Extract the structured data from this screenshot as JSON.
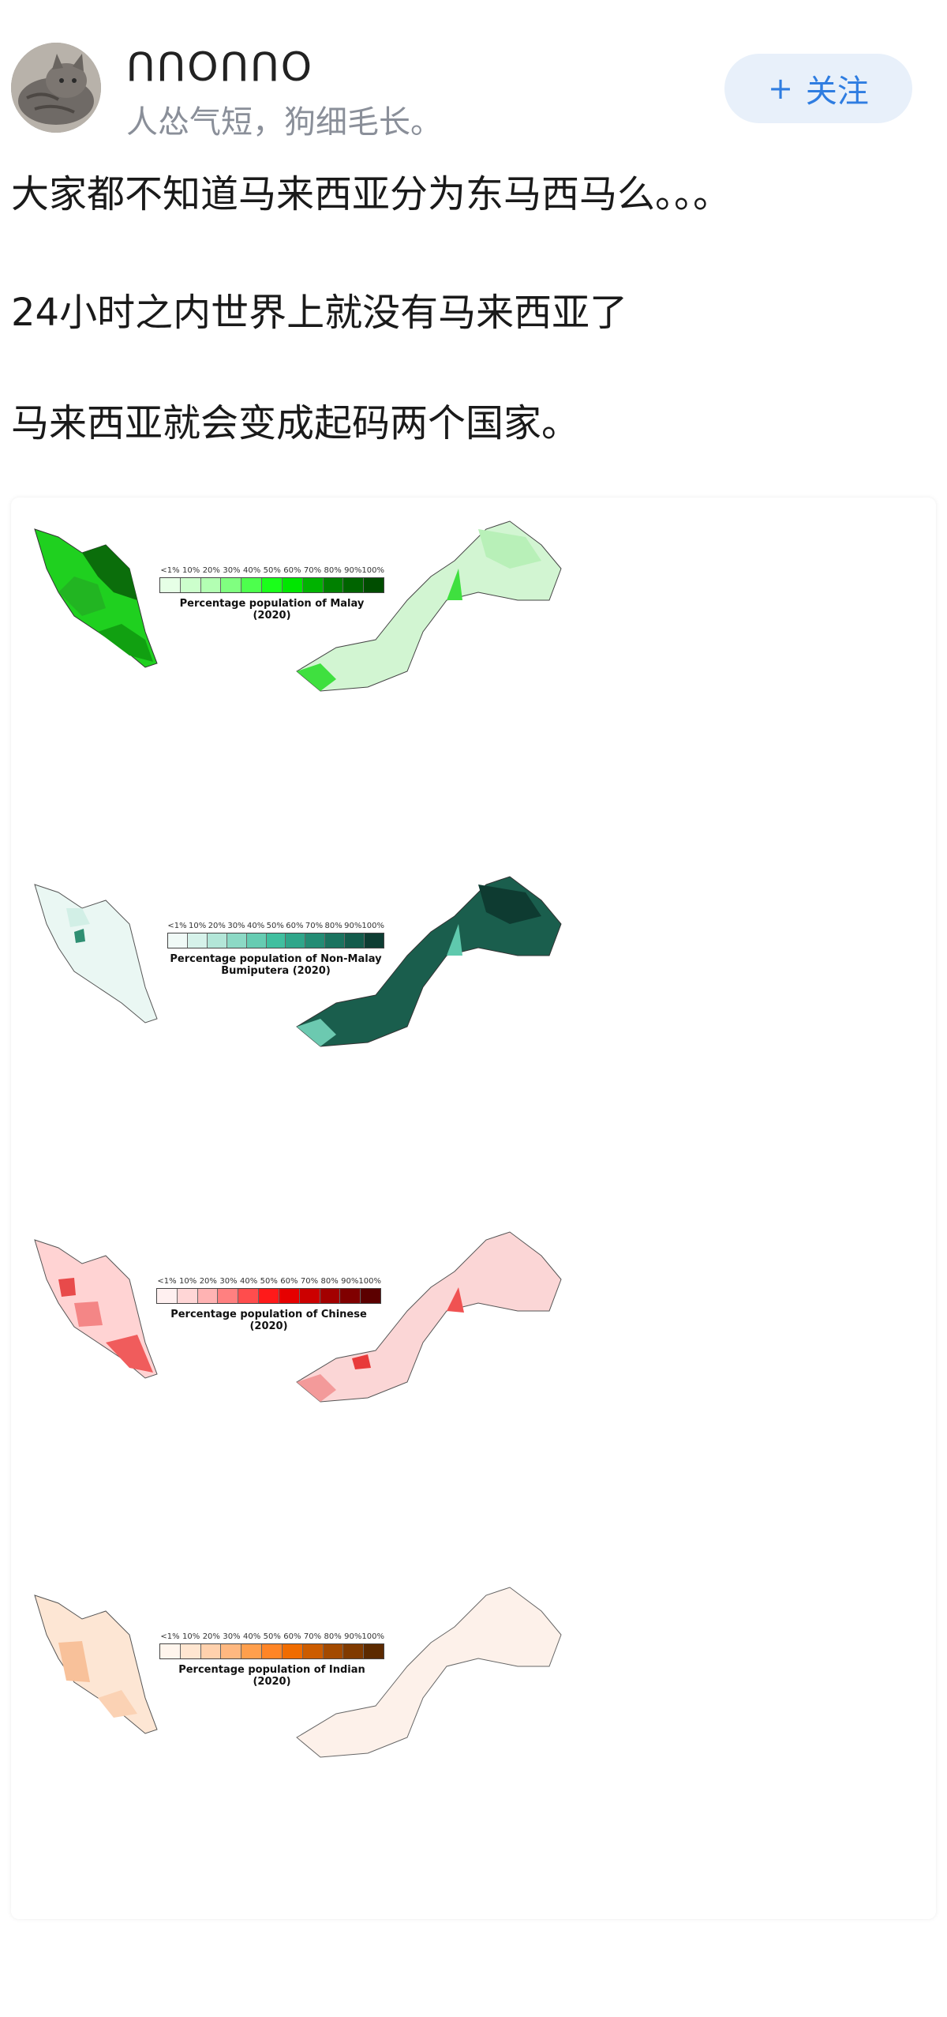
{
  "user": {
    "name": "ᑎᑎOᑎᑎO",
    "bio": "人怂气短，狗细毛长。",
    "follow_label": "关注",
    "follow_icon": "plus-icon"
  },
  "post": {
    "line1": "大家都不知道马来西亚分为东马西马么。。。",
    "line2": "24小时之内世界上就没有马来西亚了",
    "line3": "马来西亚就会变成起码两个国家。"
  },
  "maps": {
    "ticks": [
      "<1%",
      "10%",
      "20%",
      "30%",
      "40%",
      "50%",
      "60%",
      "70%",
      "80%",
      "90%",
      "100%"
    ],
    "rows": [
      {
        "caption": "Percentage population of Malay (2020)",
        "colors": [
          "#e6ffe6",
          "#ccffcc",
          "#b3ffb3",
          "#80ff80",
          "#4dff4d",
          "#1aff1a",
          "#00e600",
          "#00b300",
          "#008000",
          "#006400",
          "#004d00"
        ]
      },
      {
        "caption": "Percentage population of Non-Malay Bumiputera (2020)",
        "colors": [
          "#f0faf7",
          "#d6f2ea",
          "#b3e6d8",
          "#8cd9c5",
          "#66ccb2",
          "#40bf9f",
          "#2fa68a",
          "#238c74",
          "#1a735f",
          "#135c4c",
          "#0d3d33"
        ]
      },
      {
        "caption": "Percentage population of Chinese (2020)",
        "colors": [
          "#fff0f0",
          "#ffd6d6",
          "#ffb3b3",
          "#ff8080",
          "#ff4d4d",
          "#ff1a1a",
          "#e60000",
          "#cc0000",
          "#a30000",
          "#800000",
          "#5c0000"
        ]
      },
      {
        "caption": "Percentage population of Indian (2020)",
        "colors": [
          "#fff5ed",
          "#ffe6d1",
          "#ffd1ad",
          "#ffb880",
          "#ff9f4d",
          "#ff8526",
          "#f06c00",
          "#cc5c00",
          "#a34a00",
          "#803a00",
          "#5c2a00"
        ]
      }
    ]
  }
}
